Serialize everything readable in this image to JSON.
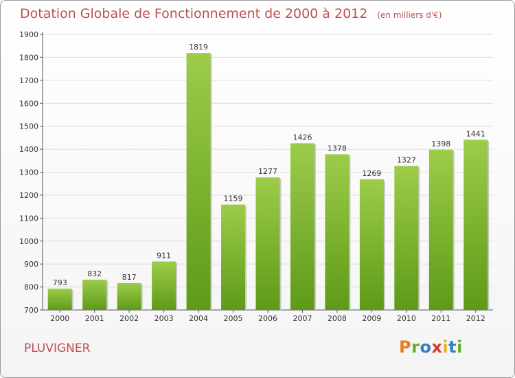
{
  "title": "Dotation Globale de Fonctionnement de 2000 à 2012",
  "unit": "(en milliers d'€)",
  "commune": "PLUVIGNER",
  "logo": {
    "text": "Proxiti",
    "colors": [
      "#e87d1e",
      "#6aaa2b",
      "#2e80c9",
      "#d1402b",
      "#e8b21e",
      "#2e80c9",
      "#6aaa2b"
    ]
  },
  "colors": {
    "title": "#c0504d",
    "bar_light": "#9ccc4a",
    "bar_dark": "#5e9a18",
    "grid": "#dcdcdc"
  },
  "chart_data": {
    "type": "bar",
    "categories": [
      "2000",
      "2001",
      "2002",
      "2003",
      "2004",
      "2005",
      "2006",
      "2007",
      "2008",
      "2009",
      "2010",
      "2011",
      "2012"
    ],
    "values": [
      793,
      832,
      817,
      911,
      1819,
      1159,
      1277,
      1426,
      1378,
      1269,
      1327,
      1398,
      1441
    ],
    "ylim": [
      700,
      1900
    ],
    "yticks": [
      700,
      800,
      900,
      1000,
      1100,
      1200,
      1300,
      1400,
      1500,
      1600,
      1700,
      1800,
      1900
    ],
    "grid": true,
    "data_labels": true
  }
}
